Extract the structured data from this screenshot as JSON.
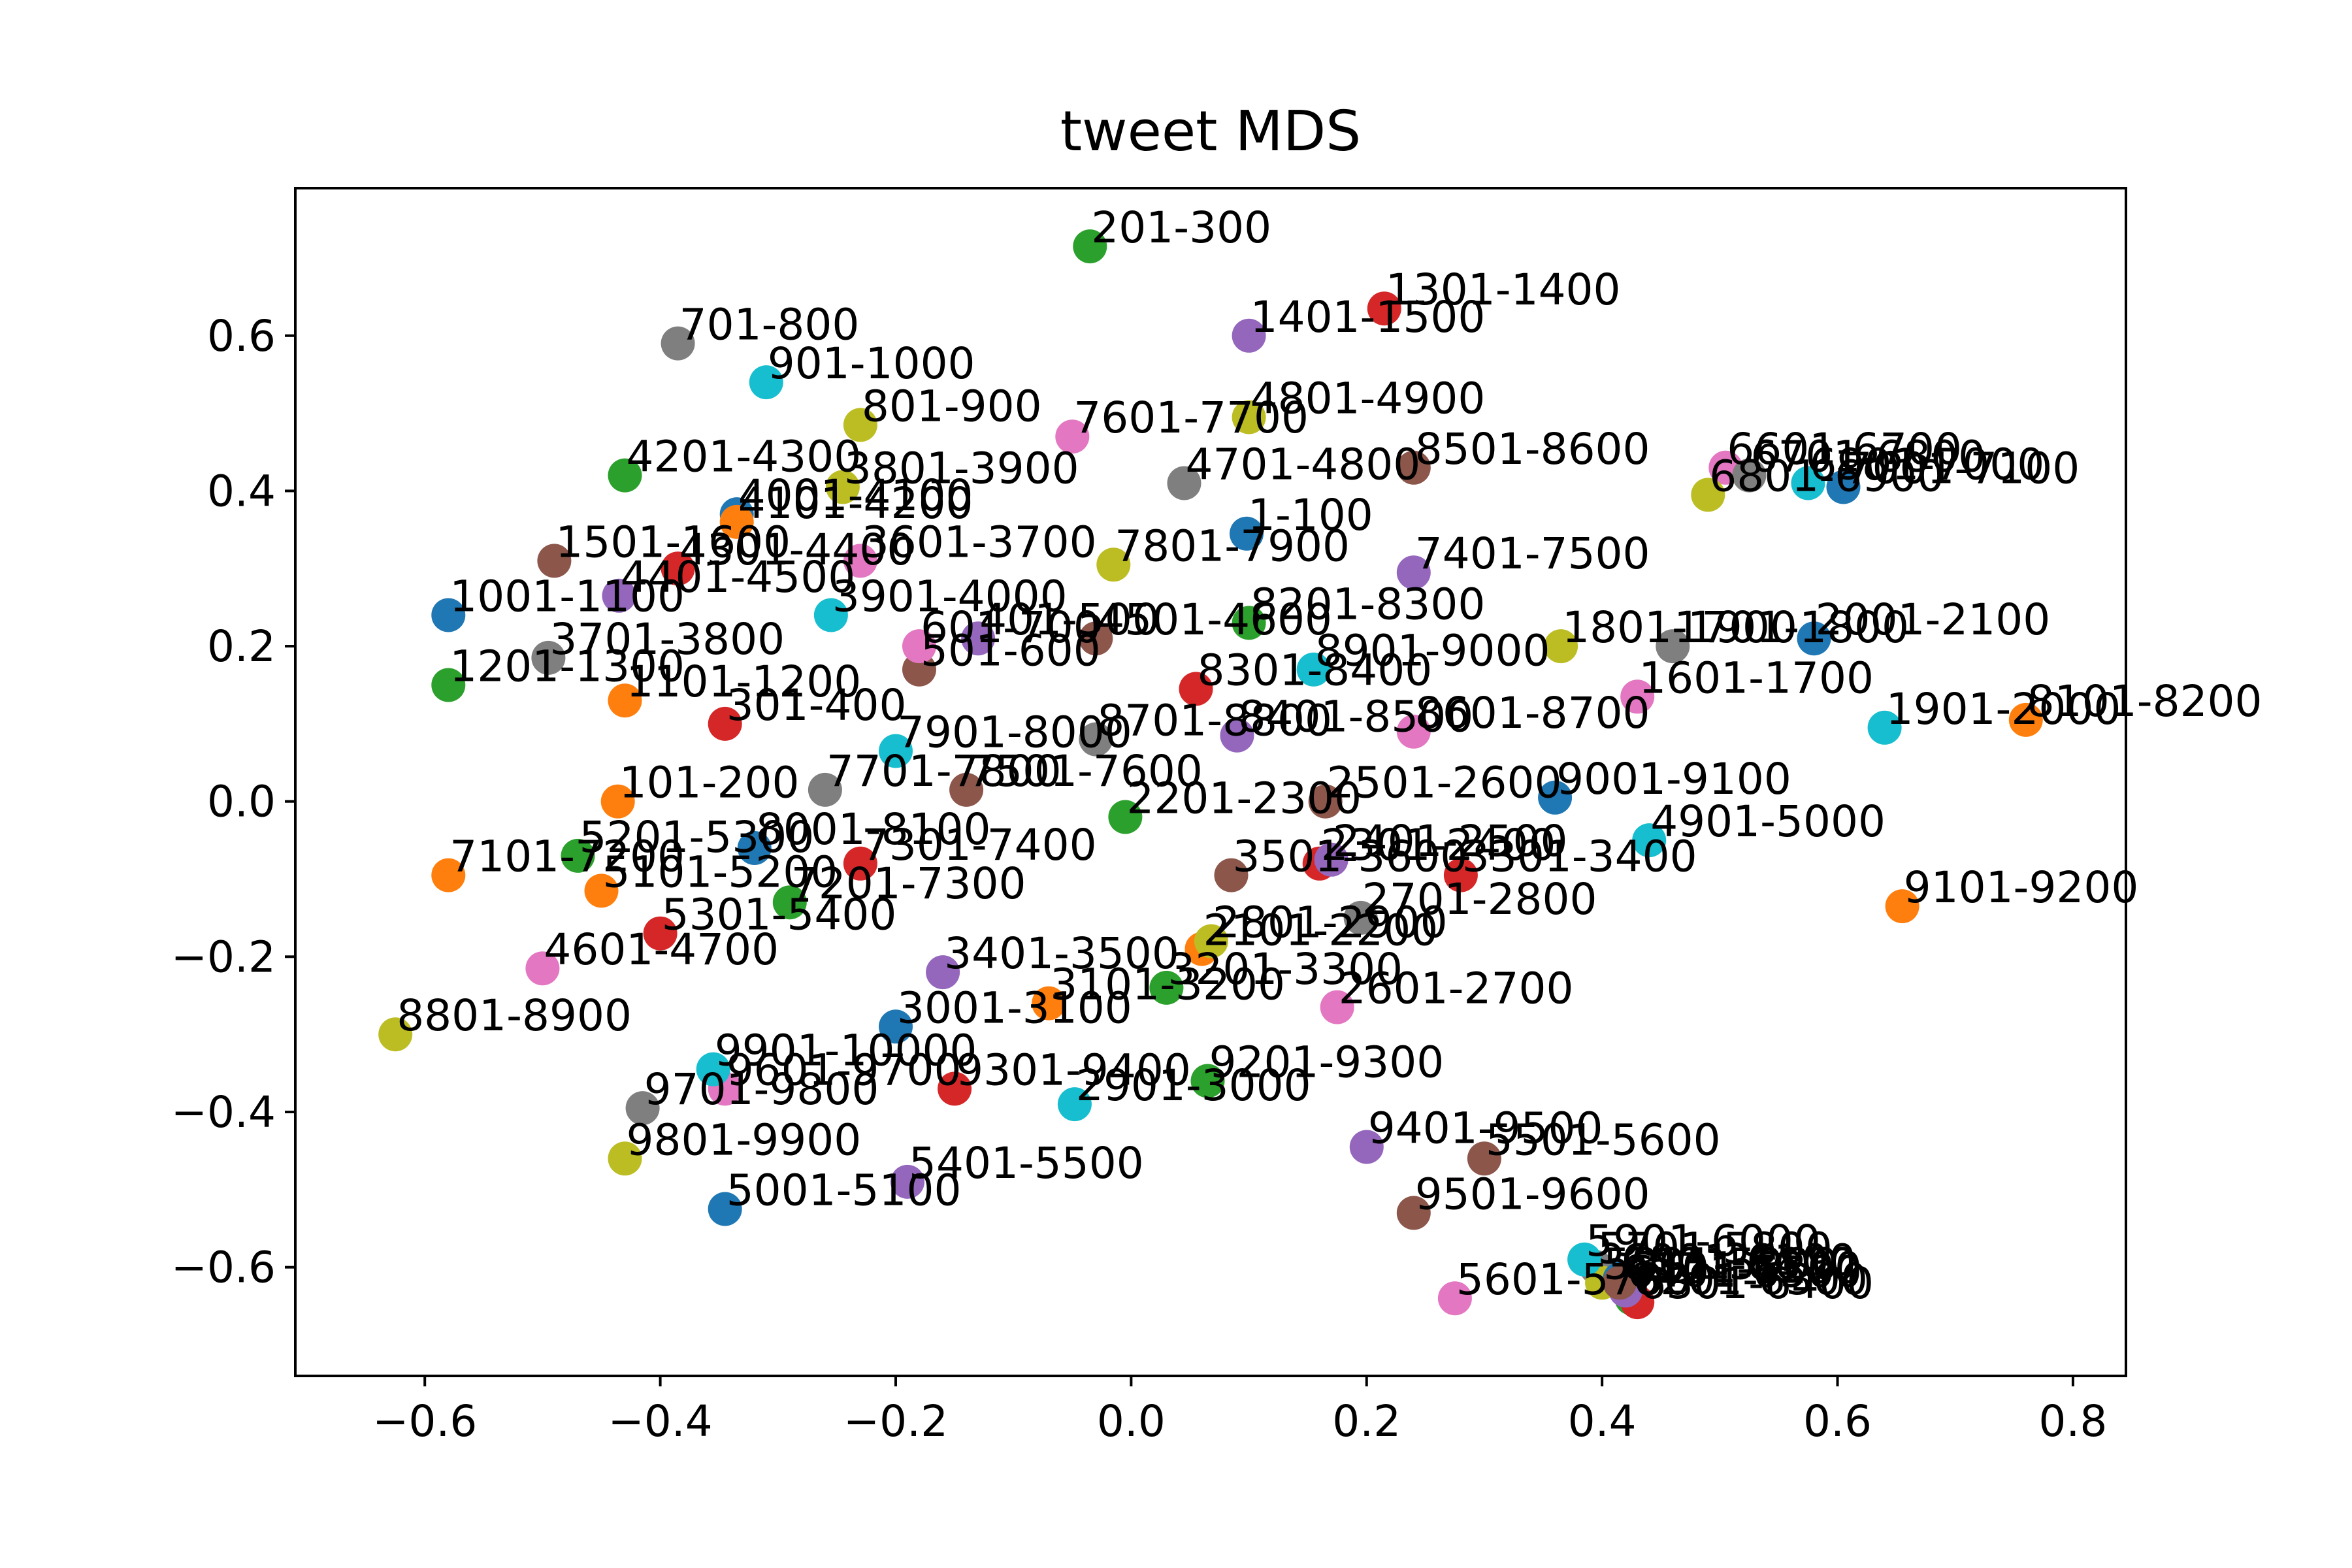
{
  "chart_data": {
    "type": "scatter",
    "title": "tweet MDS",
    "xlabel": "",
    "ylabel": "",
    "xlim": [
      -0.71,
      0.845
    ],
    "ylim": [
      -0.74,
      0.79
    ],
    "xticks": [
      -0.6,
      -0.4,
      -0.2,
      0.0,
      0.2,
      0.4,
      0.6,
      0.8
    ],
    "xtick_labels": [
      "−0.6",
      "−0.4",
      "−0.2",
      "0.0",
      "0.2",
      "0.4",
      "0.6",
      "0.8"
    ],
    "yticks": [
      -0.6,
      -0.4,
      -0.2,
      0.0,
      0.2,
      0.4,
      0.6
    ],
    "ytick_labels": [
      "−0.6",
      "−0.4",
      "−0.2",
      "0.0",
      "0.2",
      "0.4",
      "0.6"
    ],
    "grid": false,
    "legend": "none",
    "colors": [
      "#1f77b4",
      "#ff7f0e",
      "#2ca02c",
      "#d62728",
      "#9467bd",
      "#8c564b",
      "#e377c2",
      "#7f7f7f",
      "#bcbd22",
      "#17becf"
    ],
    "points": [
      {
        "label": "1-100",
        "x": 0.098,
        "y": 0.345
      },
      {
        "label": "101-200",
        "x": -0.436,
        "y": 0.0
      },
      {
        "label": "201-300",
        "x": -0.035,
        "y": 0.715
      },
      {
        "label": "301-400",
        "x": -0.345,
        "y": 0.1
      },
      {
        "label": "401-500",
        "x": -0.13,
        "y": 0.21
      },
      {
        "label": "501-600",
        "x": -0.18,
        "y": 0.17
      },
      {
        "label": "601-700",
        "x": -0.18,
        "y": 0.2
      },
      {
        "label": "701-800",
        "x": -0.385,
        "y": 0.59
      },
      {
        "label": "801-900",
        "x": -0.23,
        "y": 0.485
      },
      {
        "label": "901-1000",
        "x": -0.31,
        "y": 0.54
      },
      {
        "label": "1001-1100",
        "x": -0.58,
        "y": 0.24
      },
      {
        "label": "1101-1200",
        "x": -0.43,
        "y": 0.13
      },
      {
        "label": "1201-1300",
        "x": -0.58,
        "y": 0.15
      },
      {
        "label": "1301-1400",
        "x": 0.215,
        "y": 0.635
      },
      {
        "label": "1401-1500",
        "x": 0.1,
        "y": 0.6
      },
      {
        "label": "1501-1600",
        "x": -0.49,
        "y": 0.31
      },
      {
        "label": "1601-1700",
        "x": 0.43,
        "y": 0.135
      },
      {
        "label": "1701-1800",
        "x": 0.46,
        "y": 0.2
      },
      {
        "label": "1801-1900",
        "x": 0.365,
        "y": 0.2
      },
      {
        "label": "1901-2000",
        "x": 0.64,
        "y": 0.095
      },
      {
        "label": "2001-2100",
        "x": 0.58,
        "y": 0.21
      },
      {
        "label": "2101-2200",
        "x": 0.06,
        "y": -0.19
      },
      {
        "label": "2201-2300",
        "x": -0.005,
        "y": -0.02
      },
      {
        "label": "2301-2400",
        "x": 0.16,
        "y": -0.08
      },
      {
        "label": "2401-2500",
        "x": 0.17,
        "y": -0.075
      },
      {
        "label": "2501-2600",
        "x": 0.165,
        "y": 0.0
      },
      {
        "label": "2601-2700",
        "x": 0.175,
        "y": -0.265
      },
      {
        "label": "2701-2800",
        "x": 0.195,
        "y": -0.15
      },
      {
        "label": "2801-2900",
        "x": 0.068,
        "y": -0.18
      },
      {
        "label": "2901-3000",
        "x": -0.048,
        "y": -0.39
      },
      {
        "label": "3001-3100",
        "x": -0.2,
        "y": -0.29
      },
      {
        "label": "3101-3200",
        "x": -0.07,
        "y": -0.26
      },
      {
        "label": "3201-3300",
        "x": 0.03,
        "y": -0.24
      },
      {
        "label": "3301-3400",
        "x": 0.28,
        "y": -0.095
      },
      {
        "label": "3401-3500",
        "x": -0.16,
        "y": -0.22
      },
      {
        "label": "3501-3600",
        "x": 0.085,
        "y": -0.095
      },
      {
        "label": "3601-3700",
        "x": -0.23,
        "y": 0.31
      },
      {
        "label": "3701-3800",
        "x": -0.495,
        "y": 0.185
      },
      {
        "label": "3801-3900",
        "x": -0.245,
        "y": 0.405
      },
      {
        "label": "3901-4000",
        "x": -0.255,
        "y": 0.24
      },
      {
        "label": "4001-4100",
        "x": -0.335,
        "y": 0.37
      },
      {
        "label": "4101-4200",
        "x": -0.335,
        "y": 0.36
      },
      {
        "label": "4201-4300",
        "x": -0.43,
        "y": 0.42
      },
      {
        "label": "4301-4400",
        "x": -0.385,
        "y": 0.3
      },
      {
        "label": "4401-4500",
        "x": -0.435,
        "y": 0.265
      },
      {
        "label": "4501-4600",
        "x": -0.03,
        "y": 0.21
      },
      {
        "label": "4601-4700",
        "x": -0.5,
        "y": -0.215
      },
      {
        "label": "4701-4800",
        "x": 0.045,
        "y": 0.41
      },
      {
        "label": "4801-4900",
        "x": 0.1,
        "y": 0.495
      },
      {
        "label": "4901-5000",
        "x": 0.44,
        "y": -0.05
      },
      {
        "label": "5001-5100",
        "x": -0.345,
        "y": -0.525
      },
      {
        "label": "5101-5200",
        "x": -0.45,
        "y": -0.115
      },
      {
        "label": "5201-5300",
        "x": -0.47,
        "y": -0.07
      },
      {
        "label": "5301-5400",
        "x": -0.4,
        "y": -0.17
      },
      {
        "label": "5401-5500",
        "x": -0.19,
        "y": -0.49
      },
      {
        "label": "5501-5600",
        "x": 0.3,
        "y": -0.46
      },
      {
        "label": "5601-5700",
        "x": 0.275,
        "y": -0.64
      },
      {
        "label": "5701-5800",
        "x": 0.395,
        "y": -0.6
      },
      {
        "label": "5801-5900",
        "x": 0.4,
        "y": -0.62
      },
      {
        "label": "5901-6000",
        "x": 0.385,
        "y": -0.59
      },
      {
        "label": "6001-6100",
        "x": 0.415,
        "y": -0.615
      },
      {
        "label": "6101-6200",
        "x": 0.42,
        "y": -0.625
      },
      {
        "label": "6201-6300",
        "x": 0.425,
        "y": -0.64
      },
      {
        "label": "6301-6400",
        "x": 0.43,
        "y": -0.645
      },
      {
        "label": "6401-6500",
        "x": 0.42,
        "y": -0.63
      },
      {
        "label": "6501-6600",
        "x": 0.415,
        "y": -0.62
      },
      {
        "label": "6601-6700",
        "x": 0.505,
        "y": 0.43
      },
      {
        "label": "6701-6800",
        "x": 0.525,
        "y": 0.42
      },
      {
        "label": "6801-6900",
        "x": 0.49,
        "y": 0.395
      },
      {
        "label": "6901-7000",
        "x": 0.575,
        "y": 0.41
      },
      {
        "label": "7001-7100",
        "x": 0.605,
        "y": 0.405
      },
      {
        "label": "7101-7200",
        "x": -0.58,
        "y": -0.095
      },
      {
        "label": "7201-7300",
        "x": -0.29,
        "y": -0.13
      },
      {
        "label": "7301-7400",
        "x": -0.23,
        "y": -0.08
      },
      {
        "label": "7401-7500",
        "x": 0.24,
        "y": 0.295
      },
      {
        "label": "7501-7600",
        "x": -0.14,
        "y": 0.015
      },
      {
        "label": "7601-7700",
        "x": -0.05,
        "y": 0.47
      },
      {
        "label": "7701-7800",
        "x": -0.26,
        "y": 0.015
      },
      {
        "label": "7801-7900",
        "x": -0.015,
        "y": 0.305
      },
      {
        "label": "7901-8000",
        "x": -0.2,
        "y": 0.065
      },
      {
        "label": "8001-8100",
        "x": -0.32,
        "y": -0.06
      },
      {
        "label": "8101-8200",
        "x": 0.76,
        "y": 0.105
      },
      {
        "label": "8201-8300",
        "x": 0.1,
        "y": 0.23
      },
      {
        "label": "8301-8400",
        "x": 0.055,
        "y": 0.145
      },
      {
        "label": "8401-8500",
        "x": 0.09,
        "y": 0.085
      },
      {
        "label": "8501-8600",
        "x": 0.24,
        "y": 0.43
      },
      {
        "label": "8601-8700",
        "x": 0.24,
        "y": 0.09
      },
      {
        "label": "8701-8800",
        "x": -0.03,
        "y": 0.08
      },
      {
        "label": "8801-8900",
        "x": -0.625,
        "y": -0.3
      },
      {
        "label": "8901-9000",
        "x": 0.155,
        "y": 0.17
      },
      {
        "label": "9001-9100",
        "x": 0.36,
        "y": 0.005
      },
      {
        "label": "9101-9200",
        "x": 0.655,
        "y": -0.135
      },
      {
        "label": "9201-9300",
        "x": 0.065,
        "y": -0.36
      },
      {
        "label": "9301-9400",
        "x": -0.15,
        "y": -0.37
      },
      {
        "label": "9401-9500",
        "x": 0.2,
        "y": -0.445
      },
      {
        "label": "9501-9600",
        "x": 0.24,
        "y": -0.53
      },
      {
        "label": "9601-9700",
        "x": -0.345,
        "y": -0.37
      },
      {
        "label": "9701-9800",
        "x": -0.415,
        "y": -0.395
      },
      {
        "label": "9801-9900",
        "x": -0.43,
        "y": -0.46
      },
      {
        "label": "9901-10000",
        "x": -0.355,
        "y": -0.345
      }
    ]
  }
}
